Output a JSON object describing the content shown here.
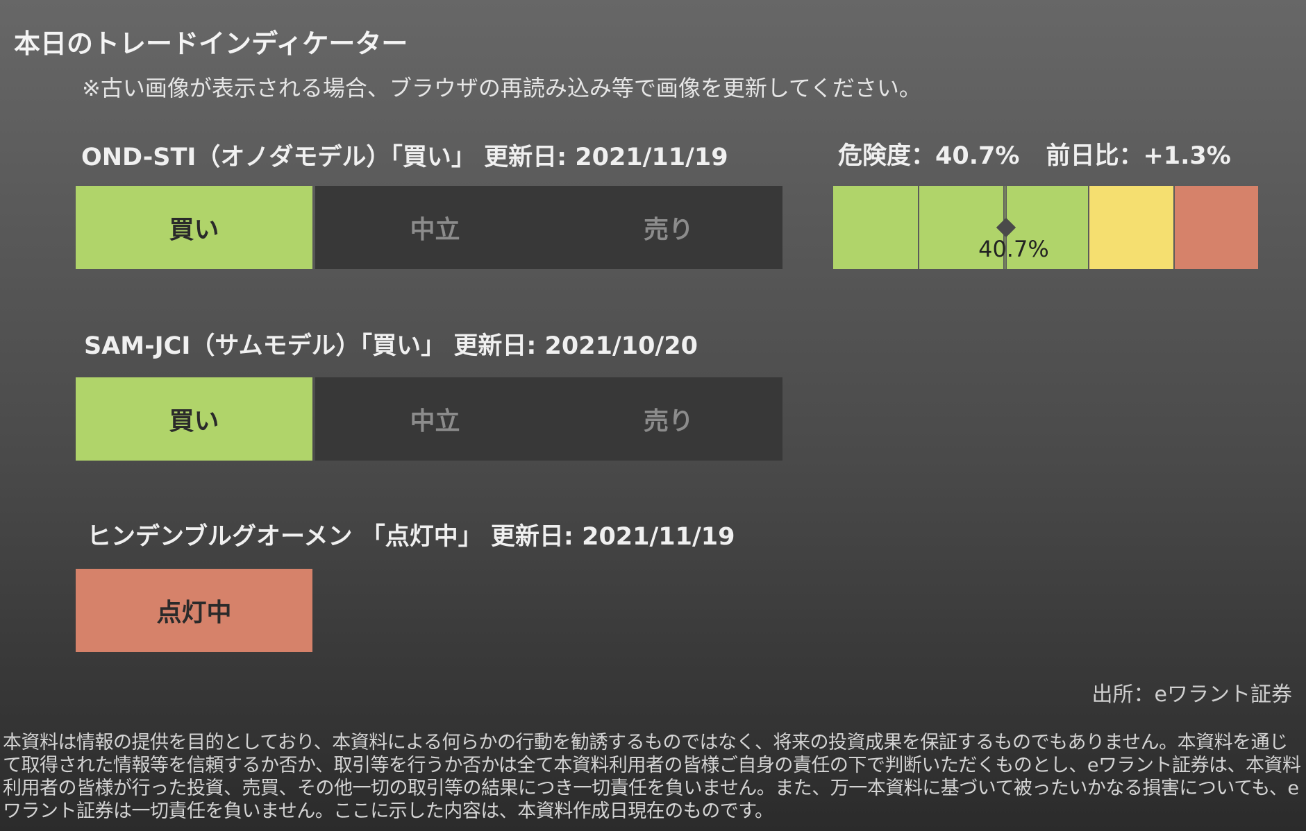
{
  "page": {
    "title": "本日のトレードインディケーター",
    "notice": "※古い画像が表示される場合、ブラウザの再読み込み等で画像を更新してください。"
  },
  "indicators": [
    {
      "heading": "OND-STI（オノダモデル）「買い」 更新日: 2021/11/19",
      "buy_label": "買い",
      "neutral_label": "中立",
      "sell_label": "売り",
      "active": "buy"
    },
    {
      "heading": "SAM-JCI（サムモデル）「買い」 更新日: 2021/10/20",
      "buy_label": "買い",
      "neutral_label": "中立",
      "sell_label": "売り",
      "active": "buy"
    }
  ],
  "risk": {
    "label": "危険度：40.7%",
    "change": "前日比：+1.3%",
    "value_percent": 40.7,
    "marker_label": "40.7%",
    "segment_colors": [
      "#b0d46a",
      "#b0d46a",
      "#b0d46a",
      "#f5df70",
      "#d6826a"
    ]
  },
  "hindenburg": {
    "heading": "ヒンデンブルグオーメン 「点灯中」 更新日: 2021/11/19",
    "status_label": "点灯中"
  },
  "colors": {
    "buy": "#b0d46a",
    "inactive": "#383838",
    "warning": "#f5df70",
    "danger": "#d6826a"
  },
  "footer": {
    "source": "出所：eワラント証券",
    "disclaimer": "本資料は情報の提供を目的としており、本資料による何らかの行動を勧誘するものではなく、将来の投資成果を保証するものでもありません。本資料を通じて取得された情報等を信頼するか否か、取引等を行うか否かは全て本資料利用者の皆様ご自身の責任の下で判断いただくものとし、eワラント証券は、本資料利用者の皆様が行った投資、売買、その他一切の取引等の結果につき一切責任を負いません。また、万一本資料に基づいて被ったいかなる損害についても、eワラント証券は一切責任を負いません。ここに示した内容は、本資料作成日現在のものです。"
  }
}
